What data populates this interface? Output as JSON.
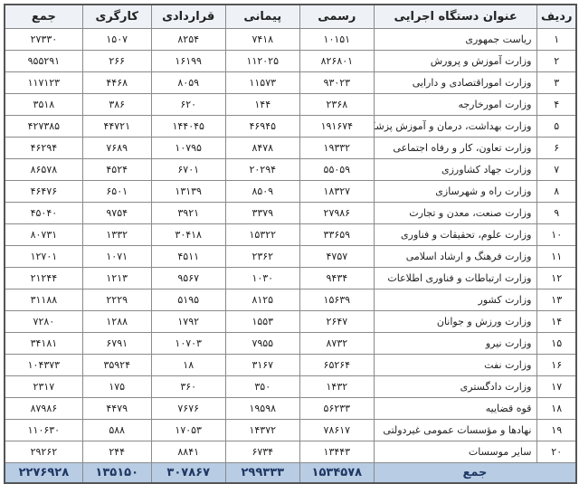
{
  "headers": {
    "row": "ردیف",
    "name": "عنوان دستگاه اجرایی",
    "official": "رسمی",
    "contract": "پیمانی",
    "contractual": "قراردادی",
    "worker": "کارگری",
    "total": "جمع"
  },
  "rows": [
    {
      "n": "۱",
      "name": "ریاست جمهوری",
      "official": "۱۰۱۵۱",
      "contract": "۷۴۱۸",
      "contractual": "۸۲۵۴",
      "worker": "۱۵۰۷",
      "total": "۲۷۳۳۰"
    },
    {
      "n": "۲",
      "name": "وزارت آموزش و پرورش",
      "official": "۸۲۶۸۰۱",
      "contract": "۱۱۲۰۲۵",
      "contractual": "۱۶۱۹۹",
      "worker": "۲۶۶",
      "total": "۹۵۵۲۹۱"
    },
    {
      "n": "۳",
      "name": "وزارت اموراقتصادی و دارایی",
      "official": "۹۳۰۲۳",
      "contract": "۱۱۵۷۳",
      "contractual": "۸۰۵۹",
      "worker": "۴۴۶۸",
      "total": "۱۱۷۱۲۳"
    },
    {
      "n": "۴",
      "name": "وزارت امورخارجه",
      "official": "۲۳۶۸",
      "contract": "۱۴۴",
      "contractual": "۶۲۰",
      "worker": "۳۸۶",
      "total": "۳۵۱۸"
    },
    {
      "n": "۵",
      "name": "وزارت بهداشت، درمان و آموزش پزشکی",
      "official": "۱۹۱۶۷۴",
      "contract": "۴۶۹۴۵",
      "contractual": "۱۴۴۰۴۵",
      "worker": "۴۴۷۲۱",
      "total": "۴۲۷۳۸۵"
    },
    {
      "n": "۶",
      "name": "وزارت تعاون، کار و رفاه اجتماعی",
      "official": "۱۹۳۳۲",
      "contract": "۸۴۷۸",
      "contractual": "۱۰۷۹۵",
      "worker": "۷۶۸۹",
      "total": "۴۶۲۹۴"
    },
    {
      "n": "۷",
      "name": "وزارت جهاد کشاورزی",
      "official": "۵۵۰۵۹",
      "contract": "۲۰۲۹۴",
      "contractual": "۶۷۰۱",
      "worker": "۴۵۲۴",
      "total": "۸۶۵۷۸"
    },
    {
      "n": "۸",
      "name": "وزارت راه و شهرسازی",
      "official": "۱۸۳۲۷",
      "contract": "۸۵۰۹",
      "contractual": "۱۳۱۳۹",
      "worker": "۶۵۰۱",
      "total": "۴۶۴۷۶"
    },
    {
      "n": "۹",
      "name": "وزارت صنعت، معدن و تجارت",
      "official": "۲۷۹۸۶",
      "contract": "۳۳۷۹",
      "contractual": "۳۹۲۱",
      "worker": "۹۷۵۴",
      "total": "۴۵۰۴۰"
    },
    {
      "n": "۱۰",
      "name": "وزارت علوم، تحقیقات و فناوری",
      "official": "۳۳۶۵۹",
      "contract": "۱۵۳۲۲",
      "contractual": "۳۰۴۱۸",
      "worker": "۱۳۳۲",
      "total": "۸۰۷۳۱"
    },
    {
      "n": "۱۱",
      "name": "وزارت فرهنگ و ارشاد اسلامی",
      "official": "۴۷۵۷",
      "contract": "۲۳۶۲",
      "contractual": "۴۵۱۱",
      "worker": "۱۰۷۱",
      "total": "۱۲۷۰۱"
    },
    {
      "n": "۱۲",
      "name": "وزارت ارتباطات و فناوری اطلاعات",
      "official": "۹۴۳۴",
      "contract": "۱۰۳۰",
      "contractual": "۹۵۶۷",
      "worker": "۱۲۱۳",
      "total": "۲۱۲۴۴"
    },
    {
      "n": "۱۳",
      "name": "وزارت کشور",
      "official": "۱۵۶۳۹",
      "contract": "۸۱۲۵",
      "contractual": "۵۱۹۵",
      "worker": "۲۲۲۹",
      "total": "۳۱۱۸۸"
    },
    {
      "n": "۱۴",
      "name": "وزارت ورزش و جوانان",
      "official": "۲۶۴۷",
      "contract": "۱۵۵۳",
      "contractual": "۱۷۹۲",
      "worker": "۱۲۸۸",
      "total": "۷۲۸۰"
    },
    {
      "n": "۱۵",
      "name": "وزارت نیرو",
      "official": "۸۷۳۲",
      "contract": "۷۹۵۵",
      "contractual": "۱۰۷۰۳",
      "worker": "۶۷۹۱",
      "total": "۳۴۱۸۱"
    },
    {
      "n": "۱۶",
      "name": "وزارت نفت",
      "official": "۶۵۲۶۴",
      "contract": "۳۱۶۷",
      "contractual": "۱۸",
      "worker": "۳۵۹۲۴",
      "total": "۱۰۴۳۷۳"
    },
    {
      "n": "۱۷",
      "name": "وزارت دادگستری",
      "official": "۱۴۳۲",
      "contract": "۳۵۰",
      "contractual": "۳۶۰",
      "worker": "۱۷۵",
      "total": "۲۳۱۷"
    },
    {
      "n": "۱۸",
      "name": "قوه قضاییه",
      "official": "۵۶۲۳۳",
      "contract": "۱۹۵۹۸",
      "contractual": "۷۶۷۶",
      "worker": "۴۴۷۹",
      "total": "۸۷۹۸۶"
    },
    {
      "n": "۱۹",
      "name": "نهادها و مؤسسات عمومی غیردولتی",
      "official": "۷۸۶۱۷",
      "contract": "۱۴۳۷۲",
      "contractual": "۱۷۰۵۳",
      "worker": "۵۸۸",
      "total": "۱۱۰۶۳۰"
    },
    {
      "n": "۲۰",
      "name": "سایر موسسات",
      "official": "۱۳۴۴۳",
      "contract": "۶۷۳۴",
      "contractual": "۸۸۴۱",
      "worker": "۲۴۴",
      "total": "۲۹۲۶۲"
    }
  ],
  "totals": {
    "label": "جمع",
    "official": "۱۵۳۴۵۷۸",
    "contract": "۲۹۹۳۳۳",
    "contractual": "۳۰۷۸۶۷",
    "worker": "۱۳۵۱۵۰",
    "total": "۲۲۷۶۹۲۸"
  }
}
